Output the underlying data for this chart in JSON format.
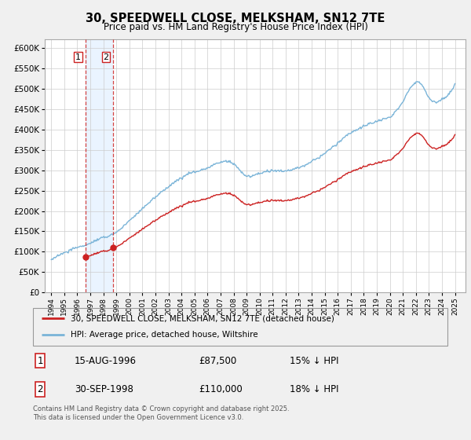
{
  "title": "30, SPEEDWELL CLOSE, MELKSHAM, SN12 7TE",
  "subtitle": "Price paid vs. HM Land Registry's House Price Index (HPI)",
  "legend_line1": "30, SPEEDWELL CLOSE, MELKSHAM, SN12 7TE (detached house)",
  "legend_line2": "HPI: Average price, detached house, Wiltshire",
  "transaction1_date": "15-AUG-1996",
  "transaction1_price": "£87,500",
  "transaction1_hpi": "15% ↓ HPI",
  "transaction2_date": "30-SEP-1998",
  "transaction2_price": "£110,000",
  "transaction2_hpi": "18% ↓ HPI",
  "copyright": "Contains HM Land Registry data © Crown copyright and database right 2025.\nThis data is licensed under the Open Government Licence v3.0.",
  "hpi_color": "#7ab4d8",
  "price_color": "#cc2222",
  "vline_color": "#cc2222",
  "shade_color": "#ddeeff",
  "background_color": "#f0f0f0",
  "plot_bg": "#ffffff",
  "ylim": [
    0,
    620000
  ],
  "xlim_start": 1993.5,
  "xlim_end": 2025.8,
  "yticks": [
    0,
    50000,
    100000,
    150000,
    200000,
    250000,
    300000,
    350000,
    400000,
    450000,
    500000,
    550000,
    600000
  ],
  "xtick_years": [
    1994,
    1995,
    1996,
    1997,
    1998,
    1999,
    2000,
    2001,
    2002,
    2003,
    2004,
    2005,
    2006,
    2007,
    2008,
    2009,
    2010,
    2011,
    2012,
    2013,
    2014,
    2015,
    2016,
    2017,
    2018,
    2019,
    2020,
    2021,
    2022,
    2023,
    2024,
    2025
  ],
  "transaction1_x": 1996.62,
  "transaction1_y": 87500,
  "transaction2_x": 1998.75,
  "transaction2_y": 110000,
  "hpi_discount": 0.82
}
